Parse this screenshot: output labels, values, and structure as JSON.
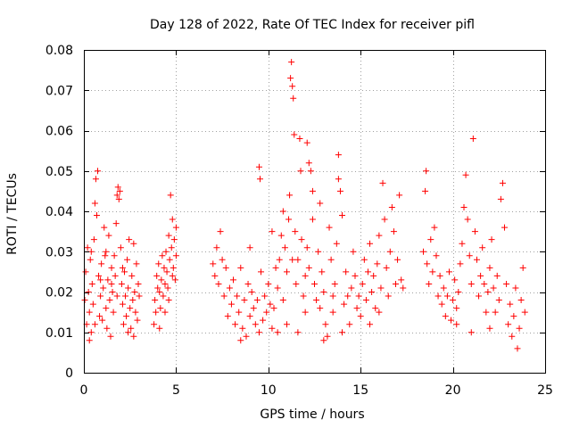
{
  "chart_data": {
    "type": "scatter",
    "title": "Day 128 of 2022, Rate Of TEC Index for receiver pifl",
    "xlabel": "GPS time / hours",
    "ylabel": "ROTI / TECUs",
    "xlim": [
      0,
      25
    ],
    "ylim": [
      0,
      0.08
    ],
    "x_ticks": [
      0,
      5,
      10,
      15,
      20,
      25
    ],
    "x_tick_labels": [
      "0",
      "5",
      "10",
      "15",
      "20",
      "25"
    ],
    "y_ticks": [
      0,
      0.01,
      0.02,
      0.03,
      0.04,
      0.05,
      0.06,
      0.07,
      0.08
    ],
    "y_tick_labels": [
      "0",
      "0.01",
      "0.02",
      "0.03",
      "0.04",
      "0.05",
      "0.06",
      "0.07",
      "0.08"
    ],
    "grid": true,
    "marker": "+",
    "color": "#ff0000",
    "series": [
      {
        "name": "ROTI",
        "points": [
          [
            0.05,
            0.018
          ],
          [
            0.1,
            0.025
          ],
          [
            0.15,
            0.012
          ],
          [
            0.2,
            0.031
          ],
          [
            0.25,
            0.02
          ],
          [
            0.3,
            0.015
          ],
          [
            0.35,
            0.028
          ],
          [
            0.4,
            0.01
          ],
          [
            0.45,
            0.022
          ],
          [
            0.5,
            0.017
          ],
          [
            0.55,
            0.033
          ],
          [
            0.6,
            0.042
          ],
          [
            0.65,
            0.048
          ],
          [
            0.7,
            0.039
          ],
          [
            0.75,
            0.05
          ],
          [
            0.8,
            0.024
          ],
          [
            0.85,
            0.014
          ],
          [
            0.9,
            0.019
          ],
          [
            0.95,
            0.027
          ],
          [
            1.0,
            0.013
          ],
          [
            1.05,
            0.021
          ],
          [
            1.1,
            0.036
          ],
          [
            1.15,
            0.029
          ],
          [
            1.2,
            0.016
          ],
          [
            1.25,
            0.011
          ],
          [
            1.3,
            0.023
          ],
          [
            1.35,
            0.034
          ],
          [
            1.4,
            0.018
          ],
          [
            1.45,
            0.009
          ],
          [
            1.5,
            0.026
          ],
          [
            1.55,
            0.02
          ],
          [
            1.6,
            0.015
          ],
          [
            1.65,
            0.029
          ],
          [
            1.7,
            0.024
          ],
          [
            1.75,
            0.037
          ],
          [
            1.8,
            0.044
          ],
          [
            1.85,
            0.046
          ],
          [
            1.9,
            0.043
          ],
          [
            1.95,
            0.045
          ],
          [
            2.0,
            0.031
          ],
          [
            2.05,
            0.022
          ],
          [
            2.1,
            0.017
          ],
          [
            2.15,
            0.012
          ],
          [
            2.2,
            0.025
          ],
          [
            2.25,
            0.019
          ],
          [
            2.3,
            0.014
          ],
          [
            2.35,
            0.028
          ],
          [
            2.4,
            0.021
          ],
          [
            2.45,
            0.033
          ],
          [
            2.5,
            0.016
          ],
          [
            2.55,
            0.011
          ],
          [
            2.6,
            0.024
          ],
          [
            2.65,
            0.018
          ],
          [
            2.7,
            0.009
          ],
          [
            2.75,
            0.02
          ],
          [
            2.8,
            0.015
          ],
          [
            2.85,
            0.027
          ],
          [
            2.9,
            0.013
          ],
          [
            2.95,
            0.022
          ],
          [
            3.0,
            0.019
          ],
          [
            0.3,
            0.008
          ],
          [
            0.6,
            0.012
          ],
          [
            0.9,
            0.023
          ],
          [
            1.2,
            0.03
          ],
          [
            1.5,
            0.022
          ],
          [
            1.8,
            0.019
          ],
          [
            2.1,
            0.026
          ],
          [
            2.4,
            0.01
          ],
          [
            2.7,
            0.032
          ],
          [
            0.4,
            0.03
          ],
          [
            3.8,
            0.012
          ],
          [
            3.85,
            0.018
          ],
          [
            3.9,
            0.015
          ],
          [
            3.95,
            0.024
          ],
          [
            4.0,
            0.021
          ],
          [
            4.05,
            0.027
          ],
          [
            4.1,
            0.02
          ],
          [
            4.15,
            0.016
          ],
          [
            4.2,
            0.023
          ],
          [
            4.25,
            0.029
          ],
          [
            4.3,
            0.019
          ],
          [
            4.35,
            0.026
          ],
          [
            4.4,
            0.022
          ],
          [
            4.45,
            0.03
          ],
          [
            4.5,
            0.025
          ],
          [
            4.55,
            0.021
          ],
          [
            4.6,
            0.034
          ],
          [
            4.65,
            0.028
          ],
          [
            4.7,
            0.044
          ],
          [
            4.75,
            0.031
          ],
          [
            4.8,
            0.038
          ],
          [
            4.85,
            0.026
          ],
          [
            4.9,
            0.033
          ],
          [
            4.95,
            0.023
          ],
          [
            5.0,
            0.036
          ],
          [
            4.1,
            0.011
          ],
          [
            4.4,
            0.015
          ],
          [
            4.6,
            0.018
          ],
          [
            4.8,
            0.024
          ],
          [
            5.0,
            0.029
          ],
          [
            7.0,
            0.027
          ],
          [
            7.1,
            0.024
          ],
          [
            7.2,
            0.031
          ],
          [
            7.3,
            0.022
          ],
          [
            7.4,
            0.035
          ],
          [
            7.5,
            0.028
          ],
          [
            7.6,
            0.019
          ],
          [
            7.7,
            0.026
          ],
          [
            7.8,
            0.014
          ],
          [
            7.9,
            0.021
          ],
          [
            8.0,
            0.017
          ],
          [
            8.1,
            0.023
          ],
          [
            8.2,
            0.012
          ],
          [
            8.3,
            0.019
          ],
          [
            8.4,
            0.015
          ],
          [
            8.5,
            0.026
          ],
          [
            8.6,
            0.011
          ],
          [
            8.7,
            0.018
          ],
          [
            8.8,
            0.009
          ],
          [
            8.9,
            0.022
          ],
          [
            9.0,
            0.014
          ],
          [
            9.1,
            0.02
          ],
          [
            9.2,
            0.016
          ],
          [
            9.3,
            0.012
          ],
          [
            9.4,
            0.018
          ],
          [
            9.5,
            0.051
          ],
          [
            9.55,
            0.048
          ],
          [
            9.6,
            0.025
          ],
          [
            9.7,
            0.013
          ],
          [
            9.8,
            0.019
          ],
          [
            9.9,
            0.015
          ],
          [
            10.0,
            0.022
          ],
          [
            10.1,
            0.017
          ],
          [
            10.2,
            0.011
          ],
          [
            10.3,
            0.016
          ],
          [
            10.4,
            0.026
          ],
          [
            10.5,
            0.021
          ],
          [
            10.6,
            0.028
          ],
          [
            10.7,
            0.034
          ],
          [
            10.8,
            0.018
          ],
          [
            10.9,
            0.031
          ],
          [
            11.0,
            0.025
          ],
          [
            11.1,
            0.038
          ],
          [
            11.15,
            0.044
          ],
          [
            11.2,
            0.073
          ],
          [
            11.25,
            0.077
          ],
          [
            11.3,
            0.071
          ],
          [
            11.35,
            0.068
          ],
          [
            11.4,
            0.059
          ],
          [
            11.45,
            0.035
          ],
          [
            11.5,
            0.022
          ],
          [
            11.6,
            0.028
          ],
          [
            11.7,
            0.058
          ],
          [
            11.75,
            0.05
          ],
          [
            11.8,
            0.033
          ],
          [
            11.9,
            0.019
          ],
          [
            12.0,
            0.024
          ],
          [
            12.1,
            0.031
          ],
          [
            12.2,
            0.026
          ],
          [
            12.3,
            0.05
          ],
          [
            12.4,
            0.038
          ],
          [
            12.5,
            0.022
          ],
          [
            12.6,
            0.018
          ],
          [
            12.7,
            0.03
          ],
          [
            12.8,
            0.016
          ],
          [
            12.9,
            0.025
          ],
          [
            13.0,
            0.02
          ],
          [
            13.1,
            0.012
          ],
          [
            13.2,
            0.009
          ],
          [
            13.3,
            0.036
          ],
          [
            13.4,
            0.028
          ],
          [
            13.5,
            0.019
          ],
          [
            13.6,
            0.022
          ],
          [
            13.7,
            0.032
          ],
          [
            13.8,
            0.054
          ],
          [
            13.9,
            0.045
          ],
          [
            14.0,
            0.039
          ],
          [
            14.1,
            0.017
          ],
          [
            14.2,
            0.025
          ],
          [
            14.3,
            0.019
          ],
          [
            14.4,
            0.012
          ],
          [
            14.5,
            0.021
          ],
          [
            14.6,
            0.03
          ],
          [
            14.7,
            0.024
          ],
          [
            14.8,
            0.016
          ],
          [
            14.9,
            0.019
          ],
          [
            15.0,
            0.014
          ],
          [
            15.1,
            0.022
          ],
          [
            15.2,
            0.028
          ],
          [
            15.3,
            0.018
          ],
          [
            15.4,
            0.025
          ],
          [
            15.5,
            0.032
          ],
          [
            15.6,
            0.02
          ],
          [
            15.7,
            0.024
          ],
          [
            15.8,
            0.016
          ],
          [
            15.9,
            0.027
          ],
          [
            16.0,
            0.034
          ],
          [
            16.1,
            0.021
          ],
          [
            16.2,
            0.047
          ],
          [
            16.3,
            0.038
          ],
          [
            16.4,
            0.026
          ],
          [
            16.5,
            0.019
          ],
          [
            16.6,
            0.03
          ],
          [
            16.7,
            0.041
          ],
          [
            16.8,
            0.035
          ],
          [
            16.9,
            0.022
          ],
          [
            17.0,
            0.028
          ],
          [
            17.1,
            0.044
          ],
          [
            17.2,
            0.023
          ],
          [
            17.3,
            0.021
          ],
          [
            10.2,
            0.035
          ],
          [
            10.8,
            0.04
          ],
          [
            11.0,
            0.012
          ],
          [
            11.6,
            0.01
          ],
          [
            12.4,
            0.045
          ],
          [
            12.8,
            0.042
          ],
          [
            13.0,
            0.008
          ],
          [
            13.5,
            0.015
          ],
          [
            14.0,
            0.01
          ],
          [
            10.5,
            0.01
          ],
          [
            8.5,
            0.008
          ],
          [
            9.0,
            0.031
          ],
          [
            9.5,
            0.01
          ],
          [
            12.0,
            0.015
          ],
          [
            15.5,
            0.012
          ],
          [
            16.0,
            0.015
          ],
          [
            11.3,
            0.028
          ],
          [
            12.1,
            0.057
          ],
          [
            12.2,
            0.052
          ],
          [
            13.8,
            0.048
          ],
          [
            18.4,
            0.03
          ],
          [
            18.5,
            0.045
          ],
          [
            18.55,
            0.05
          ],
          [
            18.6,
            0.027
          ],
          [
            18.7,
            0.022
          ],
          [
            18.8,
            0.033
          ],
          [
            18.9,
            0.025
          ],
          [
            19.0,
            0.036
          ],
          [
            19.1,
            0.029
          ],
          [
            19.2,
            0.019
          ],
          [
            19.3,
            0.024
          ],
          [
            19.4,
            0.017
          ],
          [
            19.5,
            0.021
          ],
          [
            19.6,
            0.014
          ],
          [
            19.7,
            0.019
          ],
          [
            19.8,
            0.025
          ],
          [
            19.9,
            0.013
          ],
          [
            20.0,
            0.018
          ],
          [
            20.1,
            0.023
          ],
          [
            20.2,
            0.016
          ],
          [
            20.3,
            0.02
          ],
          [
            20.4,
            0.027
          ],
          [
            20.5,
            0.032
          ],
          [
            20.6,
            0.041
          ],
          [
            20.7,
            0.049
          ],
          [
            20.8,
            0.038
          ],
          [
            20.9,
            0.029
          ],
          [
            21.0,
            0.022
          ],
          [
            21.1,
            0.058
          ],
          [
            21.2,
            0.035
          ],
          [
            21.3,
            0.028
          ],
          [
            21.4,
            0.019
          ],
          [
            21.5,
            0.024
          ],
          [
            21.6,
            0.031
          ],
          [
            21.7,
            0.022
          ],
          [
            21.8,
            0.015
          ],
          [
            21.9,
            0.02
          ],
          [
            22.0,
            0.026
          ],
          [
            22.1,
            0.033
          ],
          [
            22.2,
            0.021
          ],
          [
            22.3,
            0.015
          ],
          [
            22.4,
            0.024
          ],
          [
            22.5,
            0.018
          ],
          [
            22.6,
            0.043
          ],
          [
            22.7,
            0.047
          ],
          [
            22.8,
            0.036
          ],
          [
            22.9,
            0.022
          ],
          [
            23.0,
            0.012
          ],
          [
            23.1,
            0.017
          ],
          [
            23.2,
            0.009
          ],
          [
            23.3,
            0.014
          ],
          [
            23.4,
            0.021
          ],
          [
            23.5,
            0.006
          ],
          [
            23.6,
            0.011
          ],
          [
            23.7,
            0.018
          ],
          [
            23.8,
            0.026
          ],
          [
            23.9,
            0.015
          ],
          [
            20.2,
            0.012
          ],
          [
            21.0,
            0.01
          ],
          [
            22.0,
            0.011
          ]
        ]
      }
    ]
  }
}
